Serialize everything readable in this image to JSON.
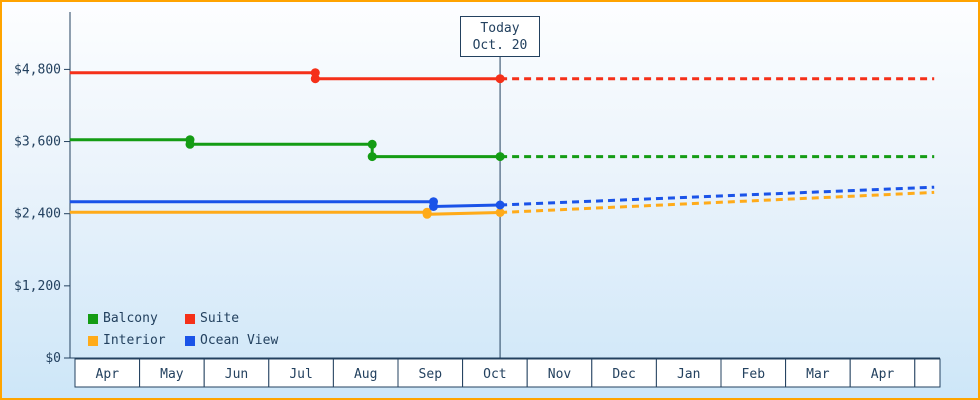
{
  "colors": {
    "frame": "#ffa400",
    "axis": "#23415f",
    "text": "#23415f",
    "background_top": "#fdfeff",
    "background_bottom": "#cde6f8",
    "month_cell_bg": "#ffffff"
  },
  "chart_data": {
    "type": "line",
    "title": "",
    "xlabel": "",
    "ylabel": "",
    "grid": false,
    "legend_position": "bottom-left",
    "ylim": [
      0,
      5000
    ],
    "months": [
      "Apr",
      "May",
      "Jun",
      "Jul",
      "Aug",
      "Sep",
      "Oct",
      "Nov",
      "Dec",
      "Jan",
      "Feb",
      "Mar",
      "Apr",
      ""
    ],
    "y_ticks": [
      "$0",
      "$1,200",
      "$2,400",
      "$3,600",
      "$4,800"
    ],
    "y_tick_values": [
      0,
      1200,
      2400,
      3600,
      4800
    ],
    "today": {
      "line1": "Today",
      "line2": "Oct. 20",
      "month_position": 6.58
    },
    "series": [
      {
        "name": "Balcony",
        "color": "#149c14",
        "solid": [
          [
            -0.08,
            3630
          ],
          [
            1.78,
            3630
          ],
          [
            1.78,
            3555
          ],
          [
            4.6,
            3555
          ],
          [
            4.6,
            3350
          ],
          [
            6.58,
            3350
          ]
        ],
        "markers": [
          [
            1.78,
            3630
          ],
          [
            1.78,
            3555
          ],
          [
            4.6,
            3555
          ],
          [
            4.6,
            3350
          ],
          [
            6.58,
            3350
          ]
        ],
        "dashed": [
          [
            6.58,
            3350
          ],
          [
            13.3,
            3350
          ]
        ]
      },
      {
        "name": "Suite",
        "color": "#f53019",
        "solid": [
          [
            -0.08,
            4745
          ],
          [
            3.72,
            4745
          ],
          [
            3.72,
            4645
          ],
          [
            6.58,
            4645
          ]
        ],
        "markers": [
          [
            3.72,
            4745
          ],
          [
            3.72,
            4645
          ],
          [
            6.58,
            4645
          ]
        ],
        "dashed": [
          [
            6.58,
            4645
          ],
          [
            13.3,
            4645
          ]
        ]
      },
      {
        "name": "Interior",
        "color": "#ffab19",
        "solid": [
          [
            -0.08,
            2425
          ],
          [
            5.45,
            2425
          ],
          [
            5.45,
            2390
          ],
          [
            6.58,
            2420
          ]
        ],
        "markers": [
          [
            5.45,
            2425
          ],
          [
            5.45,
            2390
          ],
          [
            6.58,
            2420
          ]
        ],
        "dashed": [
          [
            6.58,
            2420
          ],
          [
            13.3,
            2755
          ]
        ]
      },
      {
        "name": "Ocean View",
        "color": "#1a53e8",
        "solid": [
          [
            -0.08,
            2600
          ],
          [
            5.55,
            2600
          ],
          [
            5.55,
            2520
          ],
          [
            6.58,
            2545
          ]
        ],
        "markers": [
          [
            5.55,
            2600
          ],
          [
            5.55,
            2520
          ],
          [
            6.58,
            2545
          ]
        ],
        "dashed": [
          [
            6.58,
            2545
          ],
          [
            13.3,
            2840
          ]
        ]
      }
    ],
    "legend": [
      {
        "label": "Balcony",
        "color": "#149c14"
      },
      {
        "label": "Suite",
        "color": "#f53019"
      },
      {
        "label": "Interior",
        "color": "#ffab19"
      },
      {
        "label": "Ocean View",
        "color": "#1a53e8"
      }
    ]
  }
}
